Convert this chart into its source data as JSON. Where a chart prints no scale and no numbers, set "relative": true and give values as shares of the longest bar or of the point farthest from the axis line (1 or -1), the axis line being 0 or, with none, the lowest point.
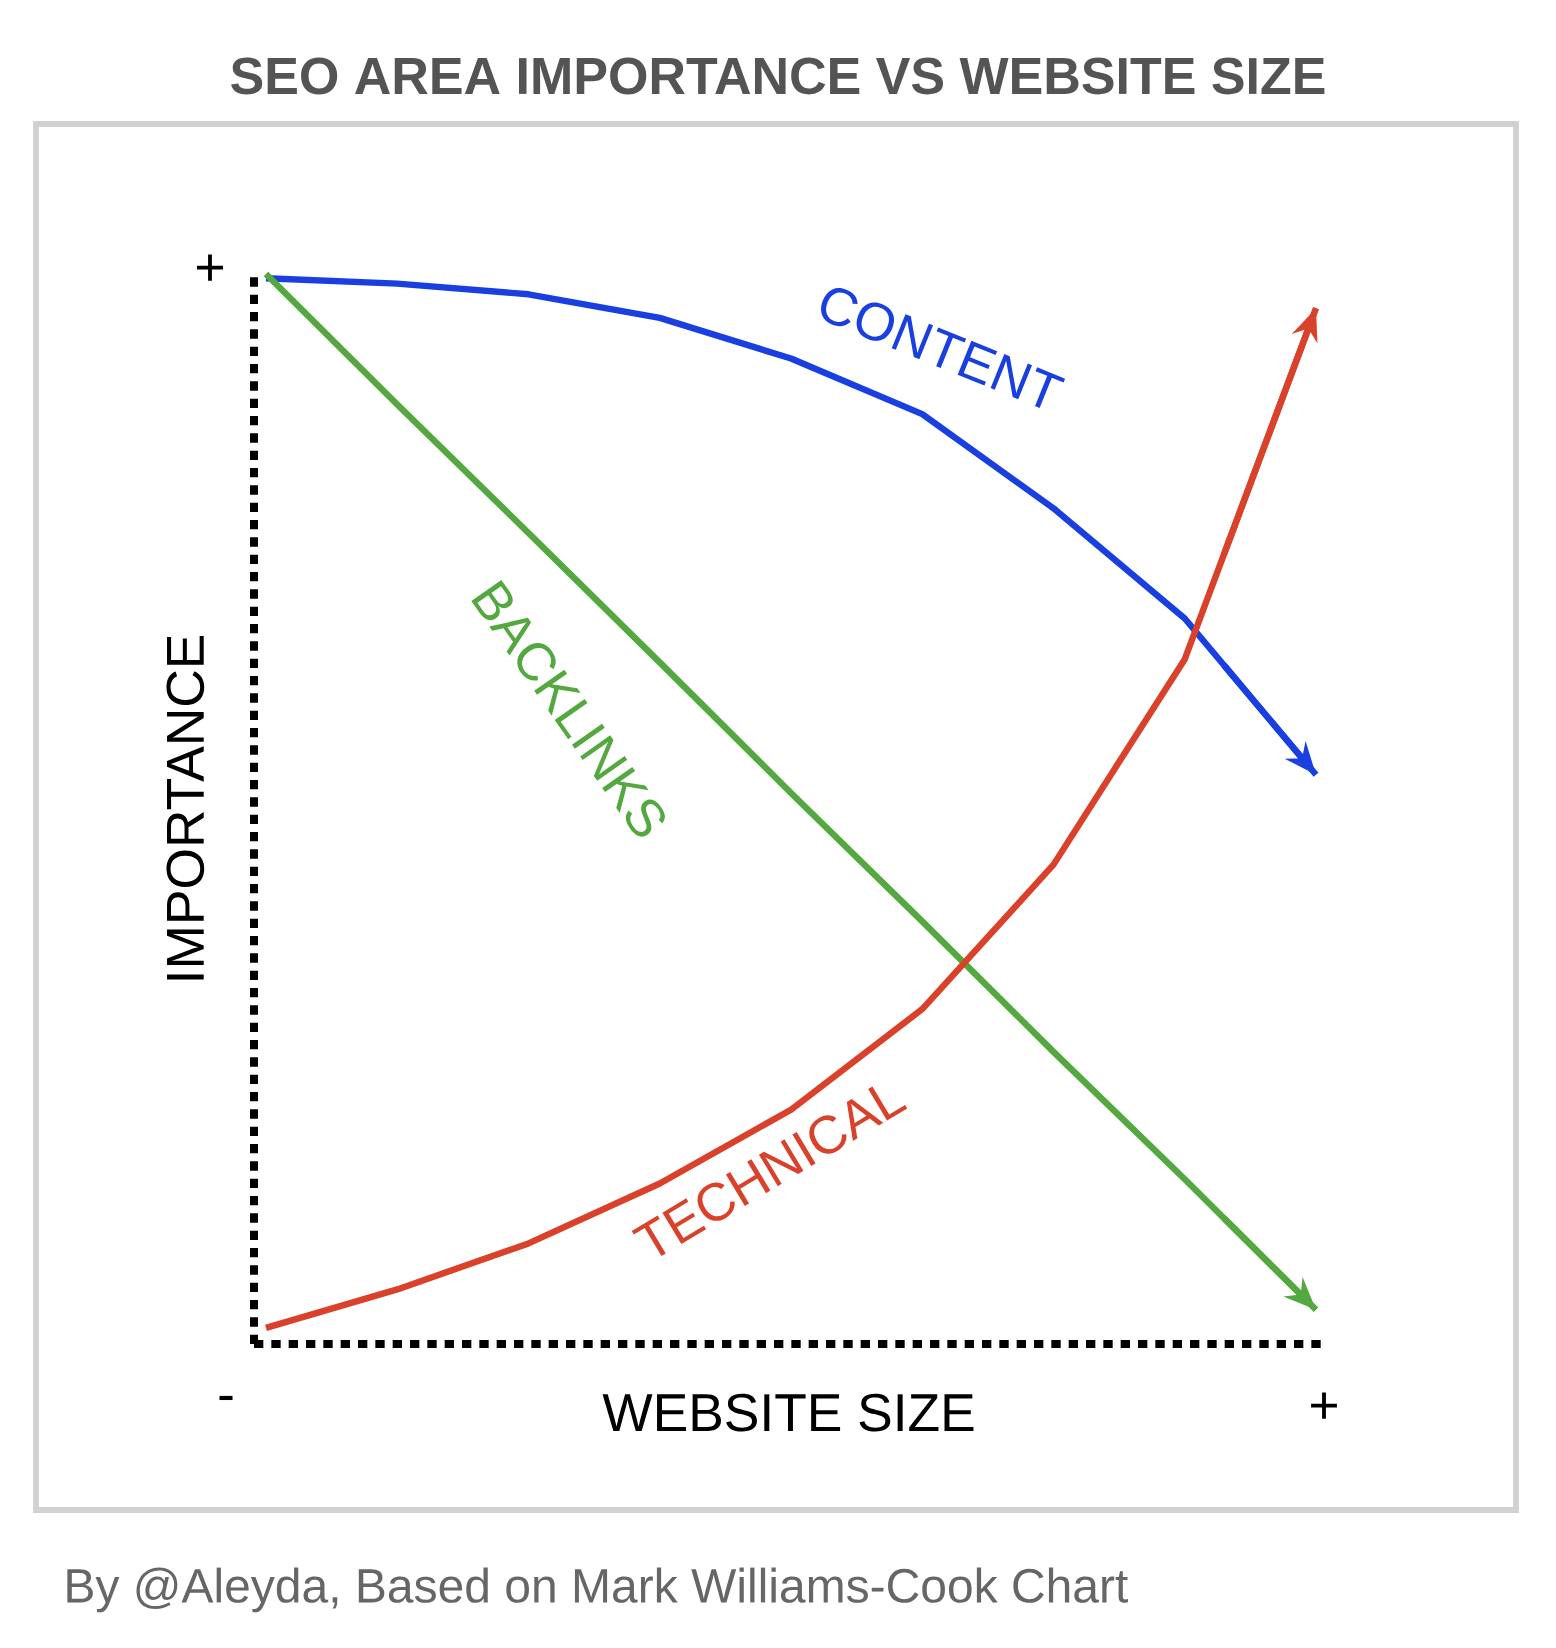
{
  "chart_data": {
    "type": "line",
    "relative": true,
    "title": "SEO AREA IMPORTANCE VS WEBSITE SIZE",
    "xlabel": "WEBSITE SIZE",
    "ylabel": "IMPORTANCE",
    "annotations": [
      "+",
      "-",
      "+",
      "By @Aleyda, Based on Mark Williams-Cook Chart"
    ],
    "categories": [
      null,
      null,
      null,
      null,
      null,
      null,
      null,
      null,
      null
    ],
    "series": [
      {
        "name": "CONTENT",
        "color": "#1a3fe0",
        "values": [
          0.996,
          0.991,
          0.981,
          0.959,
          0.921,
          0.869,
          0.781,
          0.678,
          0.532
        ]
      },
      {
        "name": "BACKLINKS",
        "color": "#53a93f",
        "values": [
          1.0,
          0.878,
          0.758,
          0.637,
          0.515,
          0.395,
          0.273,
          0.154,
          0.032
        ]
      },
      {
        "name": "TECHNICAL",
        "color": "#d9412b",
        "values": [
          0.015,
          0.051,
          0.094,
          0.15,
          0.219,
          0.313,
          0.448,
          0.64,
          0.968
        ]
      }
    ]
  }
}
